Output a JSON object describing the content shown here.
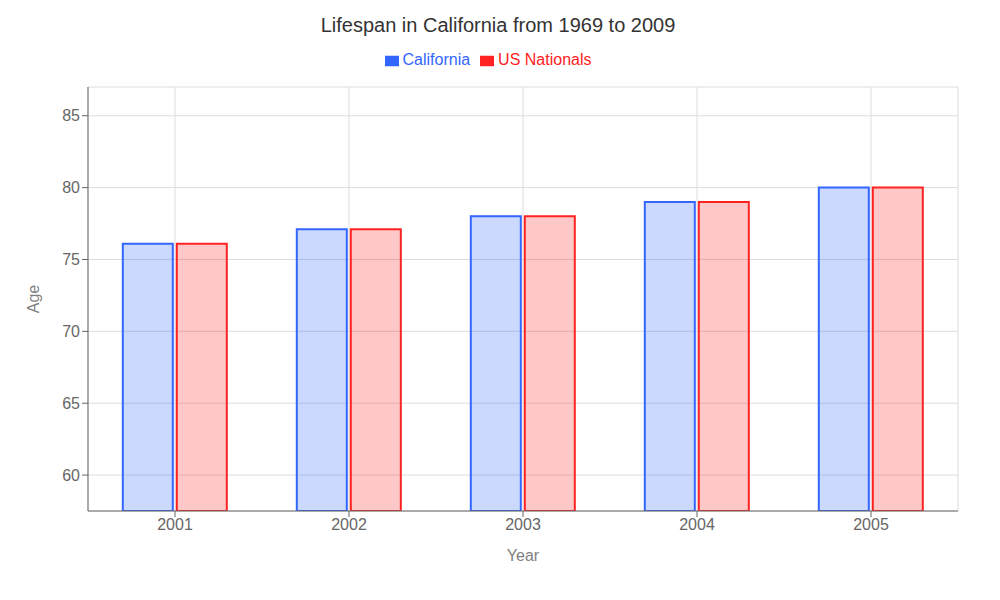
{
  "chart_data": {
    "type": "bar",
    "title": "Lifespan in California from 1969 to 2009",
    "xlabel": "Year",
    "ylabel": "Age",
    "categories": [
      "2001",
      "2002",
      "2003",
      "2004",
      "2005"
    ],
    "series": [
      {
        "name": "California",
        "color": "#3366ff",
        "values": [
          76.1,
          77.1,
          78.0,
          79.0,
          80.0
        ]
      },
      {
        "name": "US Nationals",
        "color": "#ff2222",
        "values": [
          76.1,
          77.1,
          78.0,
          79.0,
          80.0
        ]
      }
    ],
    "ylim": [
      57.5,
      87
    ],
    "yticks": [
      60,
      65,
      70,
      75,
      80,
      85
    ],
    "grid": true,
    "legend": "top"
  }
}
